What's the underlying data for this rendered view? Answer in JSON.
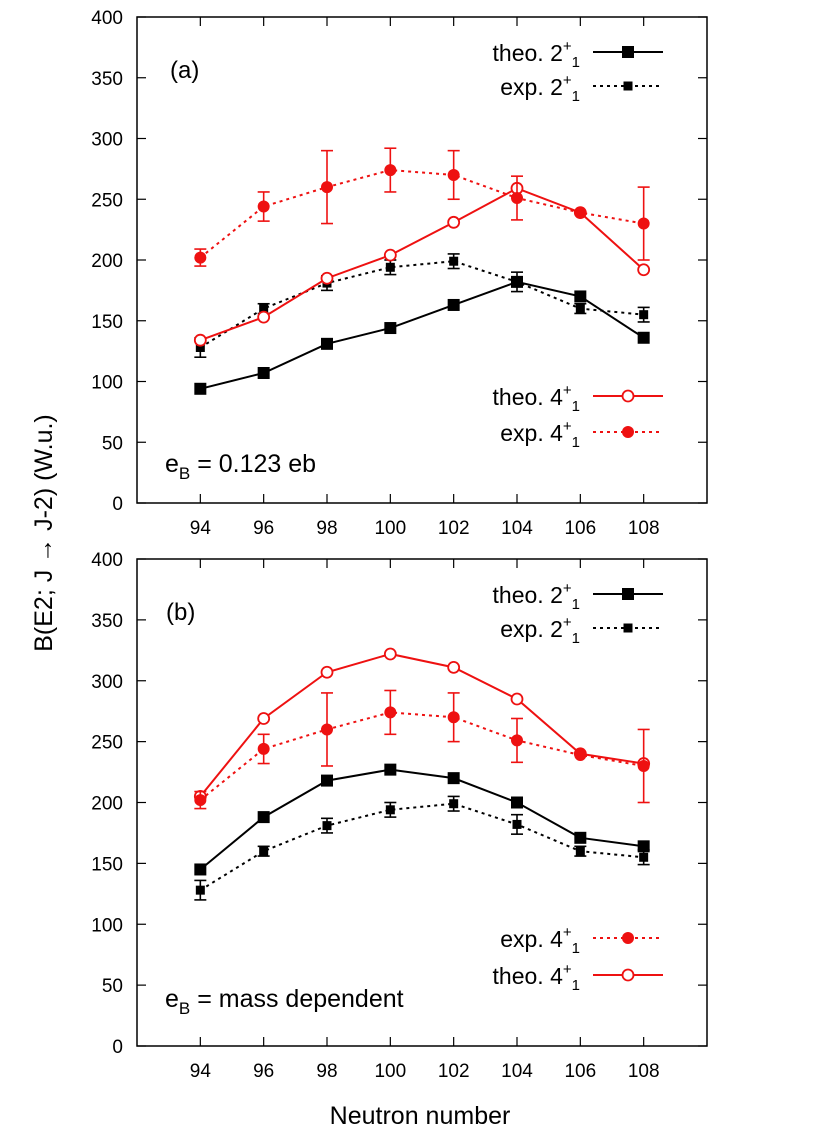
{
  "figure": {
    "ylabel": "B(E2; J → J-2) (W.u.)",
    "xlabel": "Neutron number"
  },
  "chart_data": [
    {
      "type": "line",
      "panel_label": "(a)",
      "annotation": {
        "e": "e",
        "sub": "B",
        "rest": " = 0.123 eb"
      },
      "xlabel": "Neutron number",
      "ylabel": "B(E2; J → J-2) (W.u.)",
      "xlim": [
        92,
        110
      ],
      "ylim": [
        0,
        400
      ],
      "xticks": [
        94,
        96,
        98,
        100,
        102,
        104,
        106,
        108
      ],
      "yticks": [
        0,
        50,
        100,
        150,
        200,
        250,
        300,
        350,
        400
      ],
      "x": [
        94,
        96,
        98,
        100,
        102,
        104,
        106,
        108
      ],
      "legend_upper": [
        "theo2",
        "exp2"
      ],
      "legend_lower": [
        "theo4",
        "exp4"
      ],
      "series": [
        {
          "id": "theo2",
          "name": "theo. 2",
          "sup": "+",
          "sub": "1",
          "color": "#000000",
          "dash": "solid",
          "marker": "square-filled",
          "values": [
            94,
            107,
            131,
            144,
            163,
            182,
            170,
            136
          ]
        },
        {
          "id": "exp2",
          "name": "exp. 2",
          "sup": "+",
          "sub": "1",
          "color": "#000000",
          "dash": "dotted",
          "marker": "square-small",
          "values": [
            128,
            160,
            181,
            194,
            199,
            182,
            160,
            155
          ],
          "errors": [
            8,
            4,
            6,
            6,
            6,
            8,
            4,
            6
          ]
        },
        {
          "id": "theo4",
          "name": "theo. 4",
          "sup": "+",
          "sub": "1",
          "color": "#ee1111",
          "dash": "solid",
          "marker": "circle-open",
          "values": [
            134,
            153,
            185,
            204,
            231,
            259,
            239,
            192
          ]
        },
        {
          "id": "exp4",
          "name": "exp. 4",
          "sup": "+",
          "sub": "1",
          "color": "#ee1111",
          "dash": "dotted",
          "marker": "circle-filled",
          "values": [
            202,
            244,
            260,
            274,
            270,
            251,
            239,
            230
          ],
          "errors": [
            7,
            12,
            30,
            18,
            20,
            18,
            0,
            30
          ]
        }
      ]
    },
    {
      "type": "line",
      "panel_label": "(b)",
      "annotation": {
        "e": "e",
        "sub": "B",
        "rest": " = mass dependent"
      },
      "xlabel": "Neutron number",
      "ylabel": "B(E2; J → J-2) (W.u.)",
      "xlim": [
        92,
        110
      ],
      "ylim": [
        0,
        400
      ],
      "xticks": [
        94,
        96,
        98,
        100,
        102,
        104,
        106,
        108
      ],
      "yticks": [
        0,
        50,
        100,
        150,
        200,
        250,
        300,
        350,
        400
      ],
      "x": [
        94,
        96,
        98,
        100,
        102,
        104,
        106,
        108
      ],
      "legend_upper": [
        "theo2",
        "exp2"
      ],
      "legend_lower": [
        "exp4",
        "theo4"
      ],
      "series": [
        {
          "id": "theo2",
          "name": "theo. 2",
          "sup": "+",
          "sub": "1",
          "color": "#000000",
          "dash": "solid",
          "marker": "square-filled",
          "values": [
            145,
            188,
            218,
            227,
            220,
            200,
            171,
            164
          ]
        },
        {
          "id": "exp2",
          "name": "exp. 2",
          "sup": "+",
          "sub": "1",
          "color": "#000000",
          "dash": "dotted",
          "marker": "square-small",
          "values": [
            128,
            160,
            181,
            194,
            199,
            182,
            160,
            155
          ],
          "errors": [
            8,
            4,
            6,
            6,
            6,
            8,
            4,
            6
          ]
        },
        {
          "id": "theo4",
          "name": "theo. 4",
          "sup": "+",
          "sub": "1",
          "color": "#ee1111",
          "dash": "solid",
          "marker": "circle-open",
          "values": [
            205,
            269,
            307,
            322,
            311,
            285,
            240,
            232
          ]
        },
        {
          "id": "exp4",
          "name": "exp. 4",
          "sup": "+",
          "sub": "1",
          "color": "#ee1111",
          "dash": "dotted",
          "marker": "circle-filled",
          "values": [
            202,
            244,
            260,
            274,
            270,
            251,
            239,
            230
          ],
          "errors": [
            7,
            12,
            30,
            18,
            20,
            18,
            0,
            30
          ]
        }
      ]
    }
  ]
}
